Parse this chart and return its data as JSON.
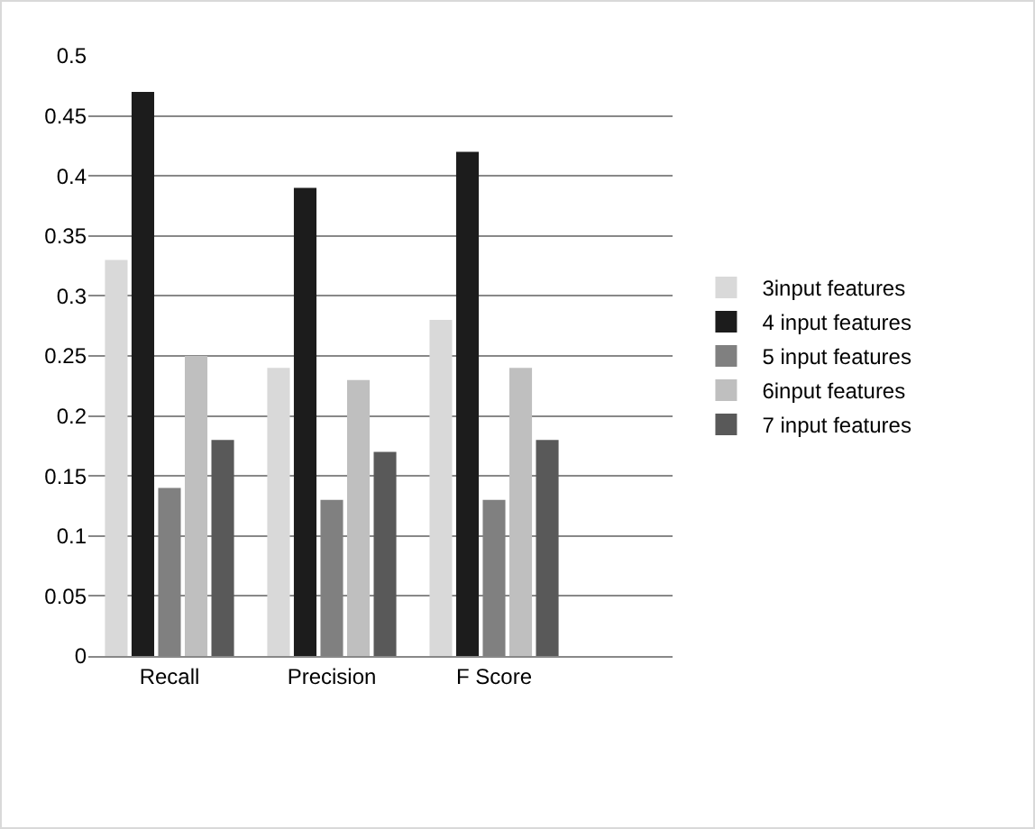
{
  "chart_data": {
    "type": "bar",
    "categories": [
      "Recall",
      "Precision",
      "F Score"
    ],
    "series": [
      {
        "name": "3input features",
        "color": "#d9d9d9",
        "values": [
          0.33,
          0.24,
          0.28
        ]
      },
      {
        "name": "4 input features",
        "color": "#1c1c1c",
        "values": [
          0.47,
          0.39,
          0.42
        ]
      },
      {
        "name": "5 input features",
        "color": "#808080",
        "values": [
          0.14,
          0.13,
          0.13
        ]
      },
      {
        "name": "6input features",
        "color": "#bfbfbf",
        "values": [
          0.25,
          0.23,
          0.24
        ]
      },
      {
        "name": "7 input features",
        "color": "#595959",
        "values": [
          0.18,
          0.17,
          0.18
        ]
      }
    ],
    "ylim": [
      0,
      0.5
    ],
    "yticks": [
      0,
      0.05,
      0.1,
      0.15,
      0.2,
      0.25,
      0.3,
      0.35,
      0.4,
      0.45,
      0.5
    ],
    "grid": "y",
    "legend": "right"
  }
}
